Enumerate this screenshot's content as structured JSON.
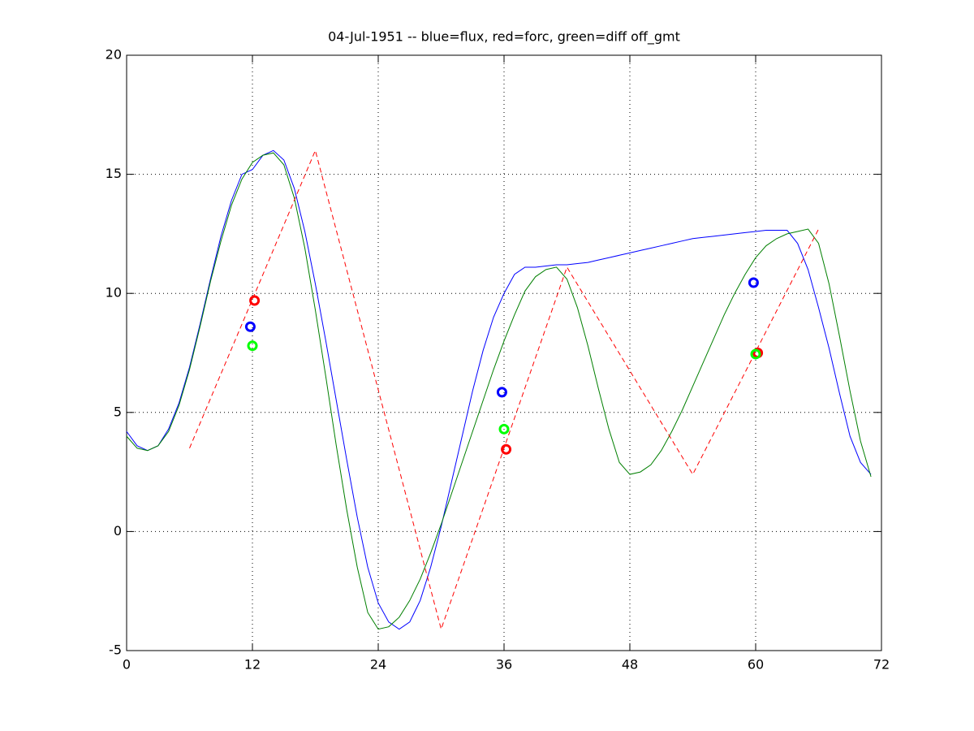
{
  "chart_data": {
    "type": "line",
    "title": "04-Jul-1951 -- blue=flux, red=forc, green=diff off_gmt",
    "xlim": [
      0,
      72
    ],
    "xticks": [
      0,
      12,
      24,
      36,
      48,
      60,
      72
    ],
    "ylim": [
      -5,
      20
    ],
    "yticks": [
      -5,
      0,
      5,
      10,
      15,
      20
    ],
    "grid": true,
    "series": [
      {
        "color": "#0000ff",
        "style": "solid",
        "x": [
          0,
          1,
          2,
          3,
          4,
          5,
          6,
          7,
          8,
          9,
          10,
          11,
          12,
          13,
          14,
          15,
          16,
          17,
          18,
          19,
          20,
          21,
          22,
          23,
          24,
          25,
          26,
          27,
          28,
          29,
          30,
          31,
          32,
          33,
          34,
          35,
          36,
          37,
          38,
          39,
          40,
          41,
          42,
          43,
          44,
          45,
          46,
          47,
          48,
          49,
          50,
          51,
          52,
          53,
          54,
          55,
          56,
          57,
          58,
          59,
          60,
          61,
          62,
          63,
          64,
          65,
          66,
          67,
          68,
          69,
          70,
          71
        ],
        "values": [
          4.2,
          3.6,
          3.4,
          3.6,
          4.3,
          5.4,
          6.9,
          8.7,
          10.6,
          12.4,
          13.9,
          15.0,
          15.2,
          15.8,
          16.0,
          15.6,
          14.4,
          12.6,
          10.4,
          8.0,
          5.5,
          3.0,
          0.6,
          -1.5,
          -3.0,
          -3.8,
          -4.1,
          -3.8,
          -2.9,
          -1.5,
          0.2,
          2.1,
          4.0,
          5.9,
          7.6,
          9.0,
          10.0,
          10.8,
          11.1,
          11.1,
          11.15,
          11.2,
          11.2,
          11.25,
          11.3,
          11.4,
          11.5,
          11.6,
          11.7,
          11.8,
          11.9,
          12.0,
          12.1,
          12.2,
          12.3,
          12.35,
          12.4,
          12.45,
          12.5,
          12.55,
          12.6,
          12.65,
          12.65,
          12.65,
          12.1,
          11.0,
          9.4,
          7.7,
          5.8,
          4.0,
          2.9,
          2.4
        ]
      },
      {
        "color": "#007f00",
        "style": "solid",
        "x": [
          0,
          1,
          2,
          3,
          4,
          5,
          6,
          7,
          8,
          9,
          10,
          11,
          12,
          13,
          14,
          15,
          16,
          17,
          18,
          19,
          20,
          21,
          22,
          23,
          24,
          25,
          26,
          27,
          28,
          29,
          30,
          31,
          32,
          33,
          34,
          35,
          36,
          37,
          38,
          39,
          40,
          41,
          42,
          43,
          44,
          45,
          46,
          47,
          48,
          49,
          50,
          51,
          52,
          53,
          54,
          55,
          56,
          57,
          58,
          59,
          60,
          61,
          62,
          63,
          64,
          65,
          66,
          67,
          68,
          69,
          70,
          71
        ],
        "values": [
          4.0,
          3.5,
          3.4,
          3.6,
          4.2,
          5.3,
          6.8,
          8.6,
          10.5,
          12.2,
          13.7,
          14.8,
          15.5,
          15.8,
          15.9,
          15.4,
          14.0,
          11.9,
          9.3,
          6.5,
          3.6,
          0.9,
          -1.5,
          -3.4,
          -4.1,
          -4.0,
          -3.6,
          -2.9,
          -2.0,
          -0.9,
          0.3,
          1.6,
          2.9,
          4.2,
          5.5,
          6.8,
          8.0,
          9.1,
          10.1,
          10.7,
          11.0,
          11.1,
          10.6,
          9.4,
          7.8,
          6.0,
          4.3,
          2.9,
          2.4,
          2.5,
          2.8,
          3.4,
          4.2,
          5.1,
          6.1,
          7.1,
          8.1,
          9.1,
          10.0,
          10.8,
          11.5,
          12.0,
          12.3,
          12.5,
          12.6,
          12.7,
          12.1,
          10.4,
          8.2,
          5.9,
          3.8,
          2.3
        ]
      },
      {
        "color": "#ff0000",
        "style": "dashed",
        "x": [
          6,
          18,
          30,
          42,
          54,
          66
        ],
        "values": [
          3.5,
          16,
          -4.1,
          11.1,
          2.4,
          12.7
        ]
      },
      {
        "color": "#0000ff",
        "style": "circle",
        "x": [
          11.8,
          35.8,
          59.8
        ],
        "values": [
          8.6,
          5.85,
          10.45
        ]
      },
      {
        "color": "#ff0000",
        "style": "circle",
        "x": [
          12.2,
          36.2,
          60.2
        ],
        "values": [
          9.7,
          3.45,
          7.5
        ]
      },
      {
        "color": "#00ff00",
        "style": "circle",
        "x": [
          12,
          36,
          60
        ],
        "values": [
          7.8,
          4.3,
          7.45
        ]
      }
    ]
  }
}
